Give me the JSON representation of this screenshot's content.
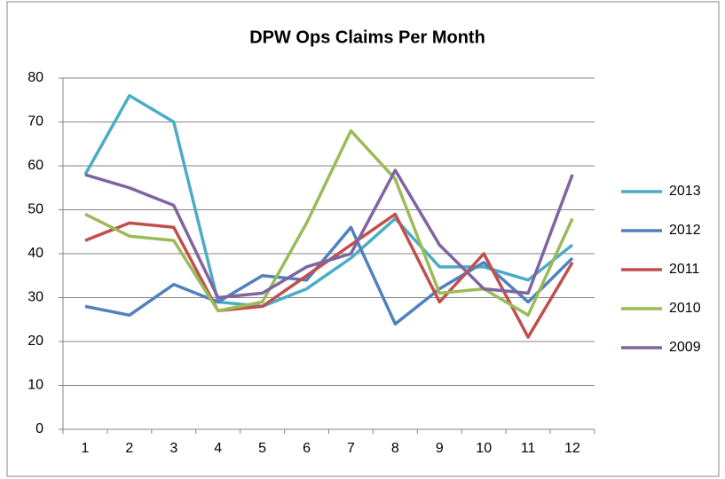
{
  "chart_data": {
    "type": "line",
    "title": "DPW Ops Claims Per Month",
    "categories": [
      "1",
      "2",
      "3",
      "4",
      "5",
      "6",
      "7",
      "8",
      "9",
      "10",
      "11",
      "12"
    ],
    "series": [
      {
        "name": "2013",
        "color": "#4bacc6",
        "values": [
          58,
          76,
          70,
          29,
          28,
          32,
          39,
          48,
          37,
          37,
          34,
          42
        ]
      },
      {
        "name": "2012",
        "color": "#4f81bd",
        "values": [
          28,
          26,
          33,
          29,
          35,
          34,
          46,
          24,
          32,
          38,
          29,
          39
        ]
      },
      {
        "name": "2011",
        "color": "#c0504d",
        "values": [
          43,
          47,
          46,
          27,
          28,
          35,
          42,
          49,
          29,
          40,
          21,
          38
        ]
      },
      {
        "name": "2010",
        "color": "#9bbb59",
        "values": [
          49,
          44,
          43,
          27,
          29,
          47,
          68,
          57,
          31,
          32,
          26,
          48
        ]
      },
      {
        "name": "2009",
        "color": "#8064a2",
        "values": [
          58,
          55,
          51,
          30,
          31,
          37,
          40,
          59,
          42,
          32,
          31,
          58
        ]
      }
    ],
    "ylim": [
      0,
      80
    ],
    "yticks": [
      0,
      10,
      20,
      30,
      40,
      50,
      60,
      70,
      80
    ],
    "grid": true,
    "legend": "right"
  }
}
